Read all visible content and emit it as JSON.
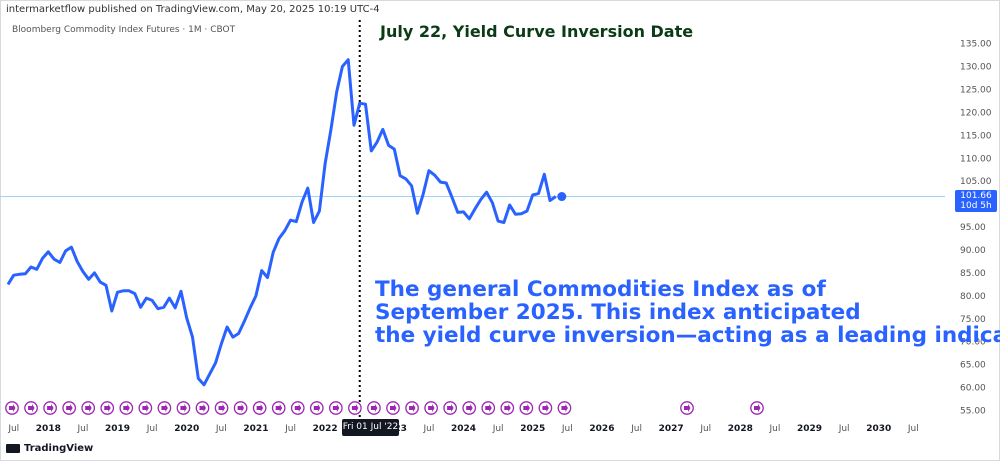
{
  "header": {
    "publisher": "intermarketflow published on TradingView.com, May 20, 2025 10:19 UTC-4",
    "symbol": "Bloomberg Commodity Index Futures · 1M · CBOT"
  },
  "annotations": {
    "top": "July 22, Yield Curve Inversion Date",
    "main": "The general Commodities Index as of\nSeptember 2025. This index anticipated\nthe yield curve inversion—acting as a leading indicator."
  },
  "price_badge": {
    "price": "101.66",
    "countdown": "10d 5h"
  },
  "crosshair_date": "Fri 01 Jul '22",
  "footer": {
    "brand": "TradingView"
  },
  "colors": {
    "line": "#2962ff",
    "badge": "#2962ff",
    "annotation_top": "#0b3b16",
    "marker": "#9c27b0"
  },
  "chart_data": {
    "type": "line",
    "ylim": [
      52,
      138
    ],
    "y_ticks": [
      55,
      60,
      65,
      70,
      75,
      80,
      85,
      90,
      95,
      100,
      105,
      110,
      115,
      120,
      125,
      130,
      135
    ],
    "x_labels": [
      "Jul",
      "2018",
      "Jul",
      "2019",
      "Jul",
      "2020",
      "Jul",
      "2021",
      "Jul",
      "2022",
      "Jul '22",
      "2023",
      "Jul",
      "2024",
      "Jul",
      "2025",
      "Jul",
      "2026",
      "Jul",
      "2027",
      "Jul",
      "2028",
      "Jul",
      "2029",
      "Jul",
      "2030",
      "Jul"
    ],
    "x_label_year_flags": [
      0,
      1,
      0,
      1,
      0,
      1,
      0,
      1,
      0,
      1,
      0,
      1,
      0,
      1,
      0,
      1,
      0,
      1,
      0,
      1,
      0,
      1,
      0,
      1,
      0,
      1,
      0
    ],
    "x_label_months": [
      2017.5,
      2018,
      2018.5,
      2019,
      2019.5,
      2020,
      2020.5,
      2021,
      2021.5,
      2022,
      2022.5,
      2023,
      2023.5,
      2024,
      2024.5,
      2025,
      2025.5,
      2026,
      2026.5,
      2027,
      2027.5,
      2028,
      2028.5,
      2029,
      2029.5,
      2030,
      2030.5
    ],
    "vertical_marker_x": 2022.5,
    "series": [
      {
        "x": [
          2017.417,
          2017.5,
          2017.583,
          2017.667,
          2017.75,
          2017.833,
          2017.917,
          2018.0,
          2018.083,
          2018.167,
          2018.25,
          2018.333,
          2018.417,
          2018.5,
          2018.583,
          2018.667,
          2018.75,
          2018.833,
          2018.917,
          2019.0,
          2019.083,
          2019.167,
          2019.25,
          2019.333,
          2019.417,
          2019.5,
          2019.583,
          2019.667,
          2019.75,
          2019.833,
          2019.917,
          2020.0,
          2020.083,
          2020.167,
          2020.25,
          2020.333,
          2020.417,
          2020.5,
          2020.583,
          2020.667,
          2020.75,
          2020.833,
          2020.917,
          2021.0,
          2021.083,
          2021.167,
          2021.25,
          2021.333,
          2021.417,
          2021.5,
          2021.583,
          2021.667,
          2021.75,
          2021.833,
          2021.917,
          2022.0,
          2022.083,
          2022.167,
          2022.25,
          2022.333,
          2022.417,
          2022.5,
          2022.583,
          2022.667,
          2022.75,
          2022.833,
          2022.917,
          2023.0,
          2023.083,
          2023.167,
          2023.25,
          2023.333,
          2023.417,
          2023.5,
          2023.583,
          2023.667,
          2023.75,
          2023.833,
          2023.917,
          2024.0,
          2024.083,
          2024.167,
          2024.25,
          2024.333,
          2024.417,
          2024.5,
          2024.583,
          2024.667,
          2024.75,
          2024.833,
          2024.917,
          2025.0,
          2025.083,
          2025.167,
          2025.25,
          2025.333
        ],
        "values": [
          82.5,
          84.5,
          84.7,
          84.8,
          86.3,
          85.8,
          88.2,
          89.6,
          88.0,
          87.3,
          89.8,
          90.6,
          87.5,
          85.3,
          83.6,
          85.0,
          83.0,
          82.3,
          76.7,
          80.8,
          81.1,
          81.1,
          80.5,
          77.5,
          79.5,
          79.0,
          77.2,
          77.5,
          79.5,
          77.4,
          81.0,
          75.2,
          71.0,
          62.0,
          60.6,
          63.0,
          65.4,
          69.5,
          73.2,
          71.0,
          71.8,
          74.5,
          77.4,
          80.0,
          85.5,
          84.0,
          89.5,
          92.5,
          94.2,
          96.5,
          96.2,
          100.5,
          103.5,
          96.0,
          98.5,
          108.8,
          116.2,
          124.5,
          130.0,
          131.5,
          117.2,
          122.0,
          121.8,
          111.6,
          113.5,
          116.3,
          112.8,
          112.0,
          106.2,
          105.5,
          104.0,
          98.0,
          102.2,
          107.3,
          106.3,
          104.8,
          104.6,
          101.5,
          98.2,
          98.3,
          96.8,
          99.0,
          101.0,
          102.6,
          100.3,
          96.3,
          96.0,
          99.8,
          97.8,
          97.9,
          98.5,
          102.0,
          102.3,
          106.5,
          100.8,
          101.66
        ]
      }
    ]
  }
}
